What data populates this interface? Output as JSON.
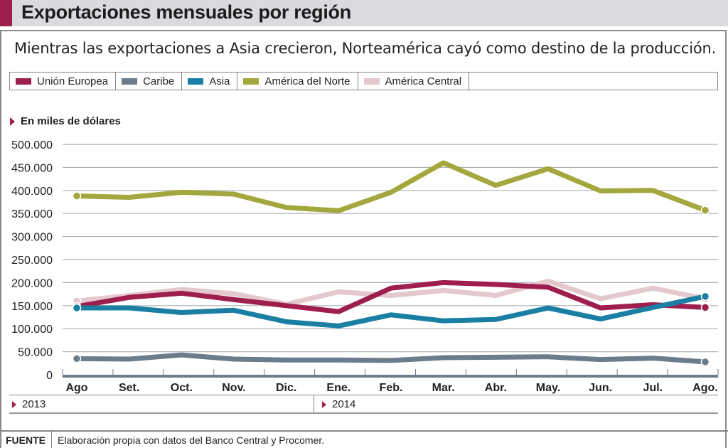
{
  "header": {
    "title": "Exportaciones mensuales por región",
    "subtitle": "Mientras las exportaciones a Asia crecieron, Norteamérica cayó como destino de la producción."
  },
  "colors": {
    "accent": "#9e1f4e",
    "union_europea": "#9e1f4e",
    "caribe": "#6b7d8c",
    "asia": "#1a7fa3",
    "america_norte": "#a3a73d",
    "america_central": "#e3c8cd",
    "grid": "#aab0b7",
    "axis": "#6b7d8c"
  },
  "legend": [
    {
      "label": "Unión Europea",
      "color": "#9e1f4e"
    },
    {
      "label": "Caribe",
      "color": "#6b7d8c"
    },
    {
      "label": "Asia",
      "color": "#1a7fa3"
    },
    {
      "label": "América del Norte",
      "color": "#a3a73d"
    },
    {
      "label": "América Central",
      "color": "#e3c8cd"
    }
  ],
  "unit_label": "En miles de dólares",
  "years": [
    "2013",
    "2014"
  ],
  "source": {
    "label": "FUENTE",
    "text": "Elaboración propia con datos del Banco Central y Procomer."
  },
  "chart_data": {
    "type": "line",
    "title": "Exportaciones mensuales por región",
    "subtitle": "Mientras las exportaciones a Asia crecieron, Norteamérica cayó como destino de la producción.",
    "ylabel": "En miles de dólares",
    "xlabel": "",
    "categories": [
      "Ago",
      "Set.",
      "Oct.",
      "Nov.",
      "Dic.",
      "Ene.",
      "Feb.",
      "Mar.",
      "Abr.",
      "May.",
      "Jun.",
      "Jul.",
      "Ago."
    ],
    "ylim": [
      0,
      500000
    ],
    "yticks": [
      0,
      50000,
      100000,
      150000,
      200000,
      250000,
      300000,
      350000,
      400000,
      450000,
      500000
    ],
    "ytick_labels": [
      "0",
      "50.000",
      "100.000",
      "150.000",
      "200.000",
      "250.000",
      "300.000",
      "350.000",
      "400.000",
      "450.000",
      "500.000"
    ],
    "grid": true,
    "legend_position": "top",
    "series": [
      {
        "name": "América del Norte",
        "color": "#a3a73d",
        "values": [
          388000,
          385000,
          396000,
          392000,
          363000,
          356000,
          396000,
          460000,
          411000,
          447000,
          399000,
          400000,
          357000
        ]
      },
      {
        "name": "América Central",
        "color": "#e3c8cd",
        "values": [
          160000,
          172000,
          185000,
          176000,
          153000,
          180000,
          172000,
          183000,
          172000,
          203000,
          165000,
          188000,
          165000
        ]
      },
      {
        "name": "Unión Europea",
        "color": "#9e1f4e",
        "values": [
          148000,
          168000,
          177000,
          163000,
          150000,
          137000,
          188000,
          200000,
          196000,
          190000,
          145000,
          152000,
          146000
        ]
      },
      {
        "name": "Asia",
        "color": "#1a7fa3",
        "values": [
          145000,
          145000,
          135000,
          140000,
          115000,
          106000,
          130000,
          117000,
          120000,
          145000,
          121000,
          146000,
          170000
        ]
      },
      {
        "name": "Caribe",
        "color": "#6b7d8c",
        "values": [
          35000,
          34000,
          43000,
          34000,
          32000,
          32000,
          31000,
          37000,
          38000,
          39000,
          33000,
          36000,
          28000
        ]
      }
    ]
  }
}
